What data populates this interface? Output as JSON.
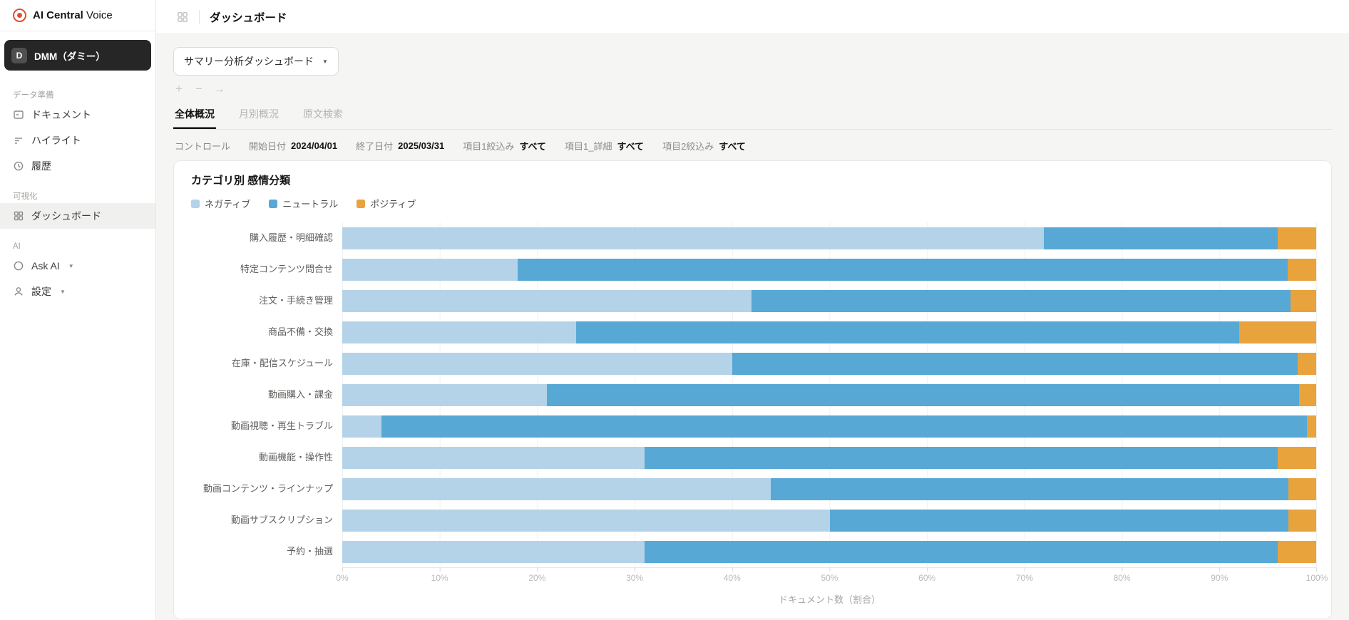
{
  "sidebar": {
    "logo": {
      "brand_bold": "AI Central",
      "brand_light": "Voice",
      "color": "#e04e30",
      "icon": "record-icon"
    },
    "workspace": {
      "initial": "D",
      "name": "DMM（ダミー）"
    },
    "sections": [
      {
        "label": "データ準備",
        "items": [
          {
            "id": "documents",
            "icon": "document-icon",
            "label": "ドキュメント",
            "active": false,
            "caret": false
          },
          {
            "id": "highlights",
            "icon": "highlight-icon",
            "label": "ハイライト",
            "active": false,
            "caret": false
          },
          {
            "id": "history",
            "icon": "history-icon",
            "label": "履歴",
            "active": false,
            "caret": false
          }
        ]
      },
      {
        "label": "可視化",
        "items": [
          {
            "id": "dashboard",
            "icon": "dashboard-icon",
            "label": "ダッシュボード",
            "active": true,
            "caret": false
          }
        ]
      },
      {
        "label": "AI",
        "items": [
          {
            "id": "ask-ai",
            "icon": "ask-ai-icon",
            "label": "Ask AI",
            "active": false,
            "caret": true
          },
          {
            "id": "settings",
            "icon": "user-icon",
            "label": "設定",
            "active": false,
            "caret": true
          }
        ]
      }
    ]
  },
  "header": {
    "title": "ダッシュボード",
    "icon": "grid-icon"
  },
  "toolbar": {
    "dashboard_selector": "サマリー分析ダッシュボード",
    "actions": [
      {
        "id": "add",
        "icon": "plus-icon",
        "glyph": "+"
      },
      {
        "id": "remove",
        "icon": "minus-icon",
        "glyph": "−"
      },
      {
        "id": "forward",
        "icon": "arrow-right-icon",
        "glyph": "→"
      }
    ]
  },
  "tabs": [
    {
      "id": "overall",
      "label": "全体概況",
      "active": true
    },
    {
      "id": "monthly",
      "label": "月別概況",
      "active": false
    },
    {
      "id": "fulltext",
      "label": "原文検索",
      "active": false
    }
  ],
  "controls": {
    "title": "コントロール",
    "filters": [
      {
        "label": "開始日付",
        "value": "2024/04/01"
      },
      {
        "label": "終了日付",
        "value": "2025/03/31"
      },
      {
        "label": "項目1絞込み",
        "value": "すべて"
      },
      {
        "label": "項目1_詳細",
        "value": "すべて"
      },
      {
        "label": "項目2絞込み",
        "value": "すべて"
      }
    ]
  },
  "chart_data": {
    "type": "bar",
    "stacked": true,
    "orientation": "horizontal",
    "title": "カテゴリ別 感情分類",
    "xlabel": "ドキュメント数（割合）",
    "xlim": [
      0,
      100
    ],
    "x_ticks": [
      "0%",
      "10%",
      "20%",
      "30%",
      "40%",
      "50%",
      "60%",
      "70%",
      "80%",
      "90%",
      "100%"
    ],
    "grid": true,
    "legend_position": "top-left",
    "categories": [
      "購入履歴・明細確認",
      "特定コンテンツ問合せ",
      "注文・手続き管理",
      "商品不備・交換",
      "在庫・配信スケジュール",
      "動画購入・課金",
      "動画視聴・再生トラブル",
      "動画機能・操作性",
      "動画コンテンツ・ラインナップ",
      "動画サブスクリプション",
      "予約・抽選"
    ],
    "series": [
      {
        "name": "ネガティブ",
        "color": "#b5d3e8",
        "values": [
          72,
          18,
          42,
          24,
          40,
          21,
          4,
          31,
          44,
          50,
          31
        ]
      },
      {
        "name": "ニュートラル",
        "color": "#57a8d5",
        "values": [
          24,
          79,
          55.3,
          68,
          58,
          77.2,
          95,
          65,
          53.1,
          47.1,
          65
        ]
      },
      {
        "name": "ポジティブ",
        "color": "#e8a33d",
        "values": [
          4,
          3,
          2.7,
          8,
          2,
          1.8,
          1,
          4,
          2.9,
          2.9,
          4
        ]
      }
    ]
  }
}
